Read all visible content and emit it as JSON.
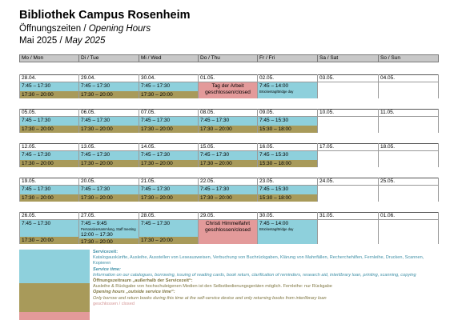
{
  "title": "Bibliothek Campus Rosenheim",
  "subtitle_de": "Öffnungszeiten / ",
  "subtitle_en": "Opening Hours",
  "month_de": "Mai 2025 / ",
  "month_en": "May 2025",
  "colors": {
    "service": "#8ed0dc",
    "outside_service": "#a89a5a",
    "closed": "#e39a9a",
    "header": "#c8c8c8"
  },
  "weekdays": [
    "Mo / Mon",
    "Di / Tue",
    "Mi / Wed",
    "Do / Thu",
    "Fr / Fri",
    "Sa / Sat",
    "So / Sun"
  ],
  "weeks": [
    {
      "days": [
        {
          "date": "28.04.",
          "service": "7:45 – 17:30",
          "outside": "17:30 – 20:00"
        },
        {
          "date": "29.04.",
          "service": "7:45 – 17:30",
          "outside": "17:30 – 20:00"
        },
        {
          "date": "30.04.",
          "service": "7:45 – 17:30",
          "outside": "17:30 – 20:00"
        },
        {
          "date": "01.05.",
          "holiday": "Tag der Arbeit",
          "closed": "geschlossen/closed"
        },
        {
          "date": "02.05.",
          "service": "7:45 – 14:00",
          "note": "Brückentag/Bridge day"
        },
        {
          "date": "03.05."
        },
        {
          "date": "04.05."
        }
      ]
    },
    {
      "days": [
        {
          "date": "05.05.",
          "service": "7:45 – 17:30",
          "outside": "17:30 – 20:00"
        },
        {
          "date": "06.05.",
          "service": "7:45 – 17:30",
          "outside": "17:30 – 20:00"
        },
        {
          "date": "07.05.",
          "service": "7:45 – 17:30",
          "outside": "17:30 – 20:00"
        },
        {
          "date": "08.05.",
          "service": "7:45 – 17:30",
          "outside": "17:30 – 20:00"
        },
        {
          "date": "09.05.",
          "service": "7:45 – 15:30",
          "outside": "15:30 – 18:00"
        },
        {
          "date": "10.05."
        },
        {
          "date": "11.05."
        }
      ]
    },
    {
      "days": [
        {
          "date": "12.05.",
          "service": "7:45 – 17:30",
          "outside": "17:30 – 20:00"
        },
        {
          "date": "13.05.",
          "service": "7:45 – 17:30",
          "outside": "17:30 – 20:00"
        },
        {
          "date": "14.05.",
          "service": "7:45 – 17:30",
          "outside": "17:30 – 20:00"
        },
        {
          "date": "15.05.",
          "service": "7:45 – 17:30",
          "outside": "17:30 – 20:00"
        },
        {
          "date": "16.05.",
          "service": "7:45 – 15:30",
          "outside": "15:30 – 18:00"
        },
        {
          "date": "17.05."
        },
        {
          "date": "18.05."
        }
      ]
    },
    {
      "days": [
        {
          "date": "19.05.",
          "service": "7:45 – 17:30",
          "outside": "17:30 – 20:00"
        },
        {
          "date": "20.05.",
          "service": "7:45 – 17:30",
          "outside": "17:30 – 20:00"
        },
        {
          "date": "21.05.",
          "service": "7:45 – 17:30",
          "outside": "17:30 – 20:00"
        },
        {
          "date": "22.05.",
          "service": "7:45 – 17:30",
          "outside": "17:30 – 20:00"
        },
        {
          "date": "23.05.",
          "service": "7:45 – 15:30",
          "outside": "15:30 – 18:00"
        },
        {
          "date": "24.05."
        },
        {
          "date": "25.05."
        }
      ]
    },
    {
      "days": [
        {
          "date": "26.05.",
          "service": "7:45 – 17:30",
          "outside": "17:30 – 20:00"
        },
        {
          "date": "27.05.",
          "service": "7:45 – 9:45",
          "note": "Personalversammlung, Staff meeting",
          "service2": "12:00 – 17:30",
          "outside": "17:30 – 20:00"
        },
        {
          "date": "28.05.",
          "service": "7:45 – 17:30",
          "outside": "17:30 – 20:00"
        },
        {
          "date": "29.05.",
          "holiday": "Christi Himmelfahrt",
          "closed": "geschlossen/closed"
        },
        {
          "date": "30.05.",
          "service": "7:45 – 14:00",
          "note": "Brückentag/Bridge day"
        },
        {
          "date": "31.05."
        },
        {
          "date": "01.06."
        }
      ]
    }
  ],
  "legend": {
    "service_title": "Servicezeit:",
    "service_de": "Katalogauskünfte, Ausleihe, Ausstellen von Leseausweisen, Verbuchung von Buchrückgaben, Klärung von Mahnfällen, Recherchehilfen, Fernleihe, Drucken, Scannen, Kopieren",
    "service_title_en": "Service time:",
    "service_en": "Information on our catalogues, borrowing, issuing of reading cards, book return, clarification of reminders, research aid, interlibrary loan, printing, scanning, copying",
    "outside_title": "Öffnungszeitraum „außerhalb der Servicezeit“:",
    "outside_de": "Ausleihe & Rückgabe von hochschuleigenen Medien ist den Selbstbedienungsgeräten möglich. Fernleihe: nur Rückgabe",
    "outside_title_en": "Opening hours „outside service time“:",
    "outside_en": "Only borrow and return books during this time at the self-service device and only returning books from interlibrary loan",
    "closed": "geschlossen / closed"
  }
}
